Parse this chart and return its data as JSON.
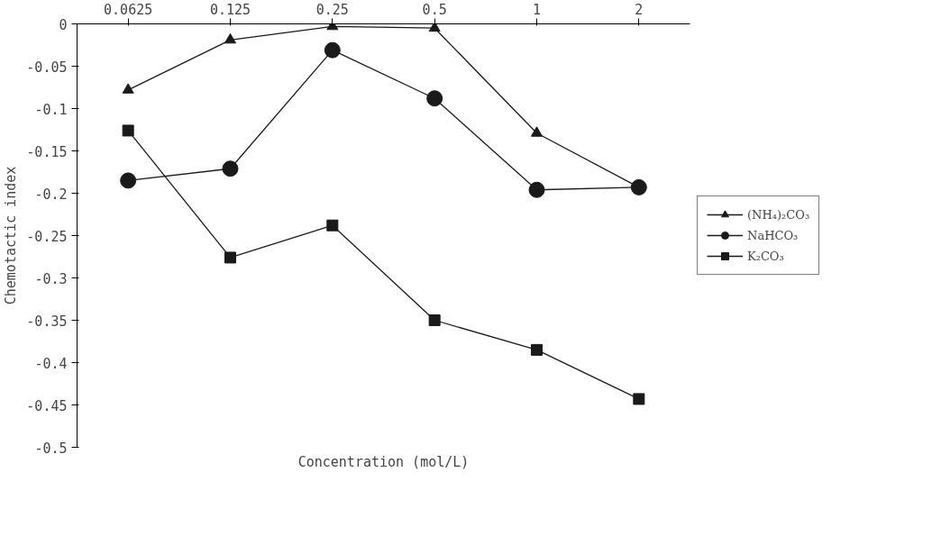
{
  "chart_data": {
    "type": "line",
    "xlabel": "Concentration (mol/L)",
    "ylabel": "Chemotactic index",
    "categories": [
      "0.0625",
      "0.125",
      "0.25",
      "0.5",
      "1",
      "2"
    ],
    "series": [
      {
        "name": "(NH₄)₂CO₃",
        "color": "#1a1a1a",
        "marker": "triangle",
        "values": [
          -0.078,
          -0.019,
          -0.003,
          -0.005,
          -0.129,
          -0.193
        ]
      },
      {
        "name": "NaHCO₃",
        "color": "#1a1a1a",
        "marker": "circle",
        "values": [
          -0.185,
          -0.171,
          -0.031,
          -0.088,
          -0.196,
          -0.193
        ]
      },
      {
        "name": "K₂CO₃",
        "color": "#1a1a1a",
        "marker": "square",
        "values": [
          -0.126,
          -0.276,
          -0.238,
          -0.35,
          -0.385,
          -0.443
        ]
      }
    ],
    "ylim": [
      -0.5,
      0
    ],
    "yticks": [
      0,
      -0.05,
      -0.1,
      -0.15,
      -0.2,
      -0.25,
      -0.3,
      -0.35,
      -0.4,
      -0.45,
      -0.5
    ],
    "grid": false,
    "legend": "right",
    "line_style": "solid"
  }
}
